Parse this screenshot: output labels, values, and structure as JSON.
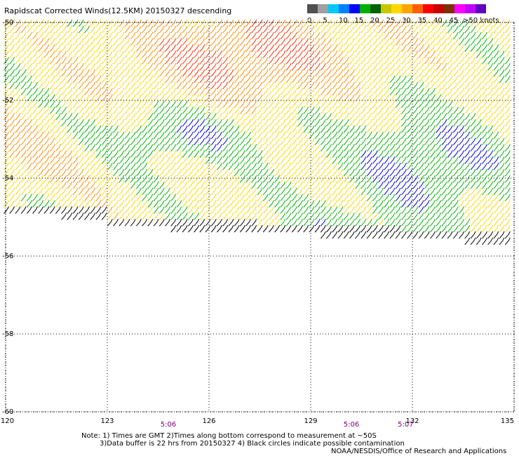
{
  "title": "Rapidscat Corrected Winds(12.5KM) 20150327 descending",
  "legend": {
    "unit": "knots",
    "labels": [
      "0",
      "5",
      "10",
      "15",
      "20",
      "25",
      "30",
      "35",
      "40",
      "45",
      ">50 knots"
    ],
    "colors": [
      "#505050",
      "#a0a0a0",
      "#00c8ff",
      "#0080ff",
      "#0000ff",
      "#00b000",
      "#006400",
      "#c8c800",
      "#ffd700",
      "#ffa500",
      "#ff6000",
      "#ff0000",
      "#c80000",
      "#803000",
      "#ff00ff",
      "#c000ff",
      "#6000c0"
    ]
  },
  "axes": {
    "lon_labels": [
      "120",
      "123",
      "126",
      "129",
      "132",
      "135"
    ],
    "lat_labels": [
      "-50",
      "-52",
      "-54",
      "-56",
      "-58",
      "-60"
    ],
    "lon_range": [
      120,
      135
    ],
    "lat_range": [
      -60,
      -50
    ],
    "grid": "dotted"
  },
  "pass_times": [
    {
      "label": "5:06",
      "lon": 124.8
    },
    {
      "label": "5:06",
      "lon": 130.2
    },
    {
      "label": "5:07",
      "lon": 131.8
    }
  ],
  "notes": [
    "Note: 1) Times are GMT 2)Times along bottom correspond to measurement at ~50S",
    "3)Data buffer is 22 hrs from 20150327 4) Black circles indicate possible contamination"
  ],
  "credit": "NOAA/NESDIS/Office of Research and Applications",
  "wind_color_scale": [
    {
      "max": 5,
      "color": "#000000"
    },
    {
      "max": 15,
      "color": "#0000dd"
    },
    {
      "max": 20,
      "color": "#00b400"
    },
    {
      "max": 25,
      "color": "#ffd700"
    },
    {
      "max": 30,
      "color": "#ff8c00"
    },
    {
      "max": 35,
      "color": "#ff3000"
    },
    {
      "max": 40,
      "color": "#d01040"
    },
    {
      "max": 99,
      "color": "#ff00ff"
    }
  ]
}
